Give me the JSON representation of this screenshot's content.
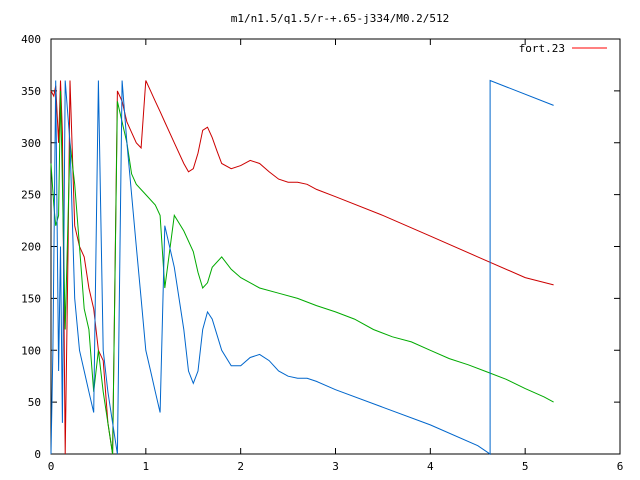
{
  "chart_data": {
    "type": "line",
    "title": "m1/n1.5/q1.5/r-+.65-j334/M0.2/512",
    "xlabel": "",
    "ylabel": "",
    "xlim": [
      0,
      6
    ],
    "ylim": [
      0,
      400
    ],
    "x_ticks": [
      "0",
      "1",
      "2",
      "3",
      "4",
      "5",
      "6"
    ],
    "y_ticks": [
      "0",
      "50",
      "100",
      "150",
      "200",
      "250",
      "300",
      "350",
      "400"
    ],
    "grid": false,
    "legend": {
      "position": "top-right",
      "entries": [
        {
          "label": "fort.23",
          "color": "#ff0000"
        }
      ]
    },
    "series": [
      {
        "name": "fort.23",
        "color": "#cc0000",
        "x": [
          0.0,
          0.03,
          0.05,
          0.08,
          0.1,
          0.12,
          0.15,
          0.18,
          0.2,
          0.25,
          0.3,
          0.35,
          0.4,
          0.45,
          0.5,
          0.55,
          0.6,
          0.65,
          0.7,
          0.75,
          0.8,
          0.85,
          0.9,
          0.95,
          1.0,
          1.05,
          1.1,
          1.15,
          1.2,
          1.3,
          1.4,
          1.45,
          1.5,
          1.55,
          1.6,
          1.65,
          1.7,
          1.75,
          1.8,
          1.9,
          2.0,
          2.1,
          2.2,
          2.3,
          2.4,
          2.5,
          2.6,
          2.7,
          2.8,
          3.0,
          3.5,
          4.0,
          4.5,
          5.0,
          5.3
        ],
        "y": [
          350,
          345,
          355,
          300,
          360,
          310,
          0,
          200,
          360,
          220,
          200,
          190,
          160,
          140,
          100,
          90,
          30,
          0,
          350,
          340,
          320,
          310,
          300,
          295,
          360,
          350,
          340,
          330,
          320,
          300,
          280,
          272,
          275,
          290,
          312,
          315,
          305,
          292,
          280,
          275,
          278,
          283,
          280,
          272,
          265,
          262,
          262,
          260,
          255,
          248,
          230,
          210,
          190,
          170,
          163
        ]
      },
      {
        "name": "",
        "color": "#00aa00",
        "x": [
          0.0,
          0.03,
          0.05,
          0.08,
          0.1,
          0.12,
          0.15,
          0.2,
          0.25,
          0.3,
          0.35,
          0.4,
          0.45,
          0.5,
          0.55,
          0.6,
          0.65,
          0.7,
          0.75,
          0.8,
          0.85,
          0.9,
          1.0,
          1.1,
          1.15,
          1.2,
          1.3,
          1.4,
          1.5,
          1.55,
          1.6,
          1.65,
          1.7,
          1.8,
          1.9,
          2.0,
          2.2,
          2.4,
          2.6,
          2.8,
          3.0,
          3.2,
          3.4,
          3.6,
          3.8,
          4.0,
          4.2,
          4.4,
          4.6,
          4.8,
          5.0,
          5.2,
          5.3
        ],
        "y": [
          280,
          240,
          220,
          230,
          350,
          260,
          120,
          300,
          260,
          200,
          140,
          120,
          60,
          100,
          60,
          30,
          0,
          340,
          320,
          300,
          270,
          260,
          250,
          240,
          230,
          160,
          230,
          215,
          195,
          175,
          160,
          165,
          180,
          190,
          178,
          170,
          160,
          155,
          150,
          143,
          137,
          130,
          120,
          113,
          108,
          100,
          92,
          86,
          79,
          72,
          63,
          55,
          50
        ]
      },
      {
        "name": "",
        "color": "#0066cc",
        "x": [
          0.0,
          0.02,
          0.05,
          0.08,
          0.1,
          0.12,
          0.15,
          0.2,
          0.25,
          0.3,
          0.35,
          0.4,
          0.45,
          0.5,
          0.55,
          0.6,
          0.65,
          0.7,
          0.75,
          0.8,
          0.85,
          0.9,
          0.95,
          1.0,
          1.05,
          1.1,
          1.15,
          1.2,
          1.3,
          1.4,
          1.45,
          1.5,
          1.55,
          1.6,
          1.65,
          1.7,
          1.8,
          1.9,
          2.0,
          2.1,
          2.2,
          2.3,
          2.4,
          2.5,
          2.6,
          2.7,
          2.8,
          3.0,
          3.5,
          4.0,
          4.5,
          4.63,
          4.63,
          5.3
        ],
        "y": [
          0,
          100,
          360,
          80,
          200,
          30,
          360,
          300,
          150,
          100,
          80,
          60,
          40,
          360,
          100,
          60,
          30,
          0,
          360,
          300,
          250,
          200,
          150,
          100,
          80,
          60,
          40,
          220,
          180,
          120,
          80,
          68,
          80,
          120,
          137,
          130,
          100,
          85,
          85,
          93,
          96,
          90,
          80,
          75,
          73,
          73,
          70,
          62,
          45,
          28,
          8,
          0,
          360,
          336
        ]
      }
    ]
  }
}
